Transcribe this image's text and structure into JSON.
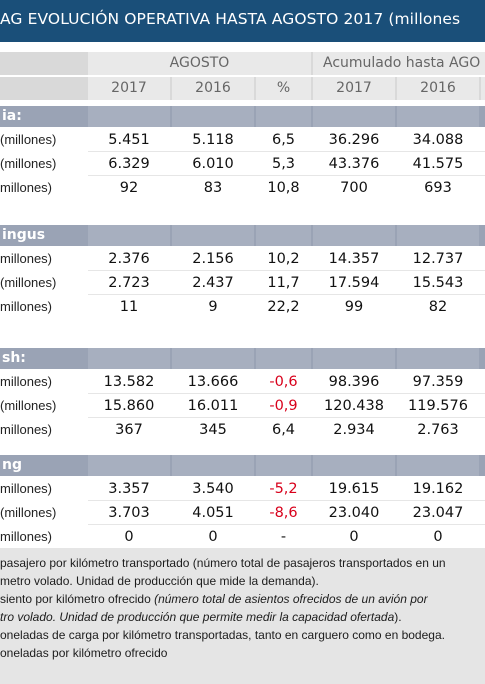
{
  "title": "AG EVOLUCIÓN OPERATIVA HASTA AGOSTO 2017 (millones",
  "header": {
    "group_agosto": "AGOSTO",
    "group_acumulado": "Acumulado hasta AGO",
    "years": [
      "2017",
      "2016",
      "%",
      "2017",
      "2016"
    ]
  },
  "sections": [
    {
      "name": "ia:",
      "rows": [
        {
          "label": "(millones)",
          "v": [
            "5.451",
            "5.118",
            "6,5",
            "36.296",
            "34.088"
          ]
        },
        {
          "label": "(millones)",
          "v": [
            "6.329",
            "6.010",
            "5,3",
            "43.376",
            "41.575"
          ]
        },
        {
          "label": "millones)",
          "v": [
            "92",
            "83",
            "10,8",
            "700",
            "693"
          ]
        }
      ]
    },
    {
      "name": "ingus",
      "rows": [
        {
          "label": "millones)",
          "v": [
            "2.376",
            "2.156",
            "10,2",
            "14.357",
            "12.737"
          ]
        },
        {
          "label": "(millones)",
          "v": [
            "2.723",
            "2.437",
            "11,7",
            "17.594",
            "15.543"
          ]
        },
        {
          "label": "millones)",
          "v": [
            "11",
            "9",
            "22,2",
            "99",
            "82"
          ]
        }
      ]
    },
    {
      "name": "sh:",
      "rows": [
        {
          "label": "millones)",
          "v": [
            "13.582",
            "13.666",
            "-0,6",
            "98.396",
            "97.359"
          ]
        },
        {
          "label": "(millones)",
          "v": [
            "15.860",
            "16.011",
            "-0,9",
            "120.438",
            "119.576"
          ]
        },
        {
          "label": "millones)",
          "v": [
            "367",
            "345",
            "6,4",
            "2.934",
            "2.763"
          ]
        }
      ]
    },
    {
      "name": "ng",
      "rows": [
        {
          "label": "millones)",
          "v": [
            "3.357",
            "3.540",
            "-5,2",
            "19.615",
            "19.162"
          ]
        },
        {
          "label": "(millones)",
          "v": [
            "3.703",
            "4.051",
            "-8,6",
            "23.040",
            "23.047"
          ]
        },
        {
          "label": "millones)",
          "v": [
            "0",
            "0",
            "-",
            "0",
            "0"
          ]
        }
      ]
    }
  ],
  "footer": {
    "line1": "pasajero por kilómetro transportado (número total de pasajeros transportados en un",
    "line2": "metro volado. Unidad de producción que mide la demanda).",
    "line3_plain": "siento por kilómetro ofrecido ",
    "line3_italic": "(número total de asientos ofrecidos de un avión por",
    "line4": "tro volado. Unidad de producción que permite medir la capacidad ofertada",
    "line4_tail": ").",
    "line5": "oneladas de carga por kilómetro transportadas, tanto en carguero como en bodega.",
    "line6": "oneladas por kilómetro ofrecido"
  },
  "colors": {
    "title_bar": "#1a4f79",
    "section_bar": "#9aa3b5",
    "negative": "#d8001b",
    "footer_bg": "#e5e5e5"
  }
}
